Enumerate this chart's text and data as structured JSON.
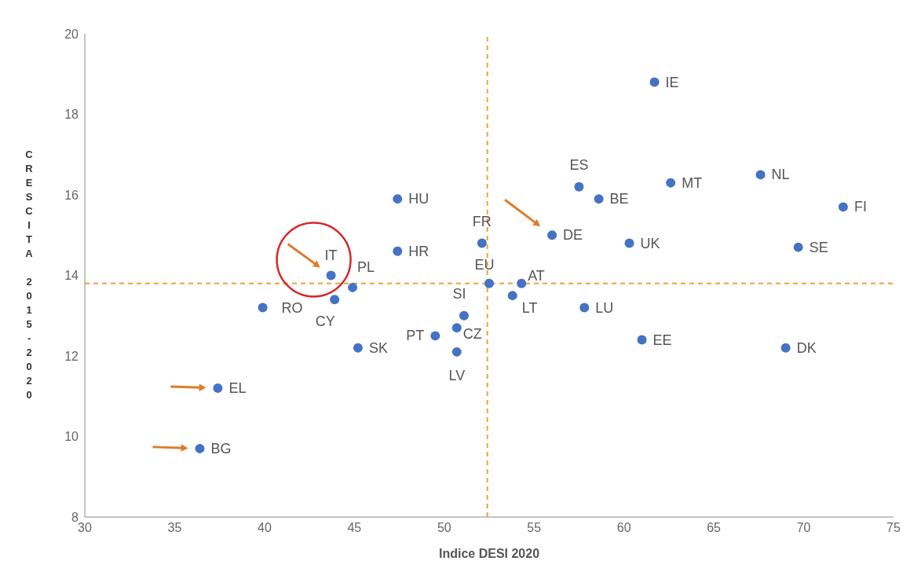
{
  "chart_data": {
    "type": "scatter",
    "xlabel": "Indice DESI 2020",
    "ylabel": "CRESCITA 2015-2020",
    "xlim": [
      30,
      75
    ],
    "xticks": [
      30,
      35,
      40,
      45,
      50,
      55,
      60,
      65,
      70,
      75
    ],
    "ylim": [
      8,
      20
    ],
    "yticks": [
      8,
      10,
      12,
      14,
      16,
      18,
      20
    ],
    "grid": false,
    "legend": false,
    "marker": "circle",
    "ref_lines": [
      {
        "axis": "x",
        "value": 52.4,
        "color": "#f0a040",
        "line_style": "dashed"
      },
      {
        "axis": "y",
        "value": 13.8,
        "color": "#f0a040",
        "line_style": "dashed"
      }
    ],
    "series": [
      {
        "name": "IE",
        "x": [
          61.7
        ],
        "values": [
          18.8
        ],
        "color": "#4472c4"
      },
      {
        "name": "ES",
        "x": [
          57.5
        ],
        "values": [
          16.2
        ],
        "color": "#4472c4"
      },
      {
        "name": "BE",
        "x": [
          58.6
        ],
        "values": [
          15.9
        ],
        "color": "#4472c4"
      },
      {
        "name": "MT",
        "x": [
          62.6
        ],
        "values": [
          16.3
        ],
        "color": "#4472c4"
      },
      {
        "name": "NL",
        "x": [
          67.6
        ],
        "values": [
          16.5
        ],
        "color": "#4472c4"
      },
      {
        "name": "FI",
        "x": [
          72.2
        ],
        "values": [
          15.7
        ],
        "color": "#4472c4"
      },
      {
        "name": "HU",
        "x": [
          47.4
        ],
        "values": [
          15.9
        ],
        "color": "#4472c4"
      },
      {
        "name": "FR",
        "x": [
          52.1
        ],
        "values": [
          14.8
        ],
        "color": "#4472c4"
      },
      {
        "name": "DE",
        "x": [
          56.0
        ],
        "values": [
          15.0
        ],
        "color": "#4472c4"
      },
      {
        "name": "UK",
        "x": [
          60.3
        ],
        "values": [
          14.8
        ],
        "color": "#4472c4"
      },
      {
        "name": "SE",
        "x": [
          69.7
        ],
        "values": [
          14.7
        ],
        "color": "#4472c4"
      },
      {
        "name": "HR",
        "x": [
          47.4
        ],
        "values": [
          14.6
        ],
        "color": "#4472c4"
      },
      {
        "name": "IT",
        "x": [
          43.7
        ],
        "values": [
          14.0
        ],
        "color": "#4472c4"
      },
      {
        "name": "PL",
        "x": [
          44.9
        ],
        "values": [
          13.7
        ],
        "color": "#4472c4"
      },
      {
        "name": "EU",
        "x": [
          52.5
        ],
        "values": [
          13.8
        ],
        "color": "#4472c4"
      },
      {
        "name": "AT",
        "x": [
          54.3
        ],
        "values": [
          13.8
        ],
        "color": "#4472c4"
      },
      {
        "name": "LT",
        "x": [
          53.8
        ],
        "values": [
          13.5
        ],
        "color": "#4472c4"
      },
      {
        "name": "RO",
        "x": [
          39.9
        ],
        "values": [
          13.2
        ],
        "color": "#4472c4"
      },
      {
        "name": "CY",
        "x": [
          43.9
        ],
        "values": [
          13.4
        ],
        "color": "#4472c4"
      },
      {
        "name": "SI",
        "x": [
          51.1
        ],
        "values": [
          13.0
        ],
        "color": "#4472c4"
      },
      {
        "name": "LU",
        "x": [
          57.8
        ],
        "values": [
          13.2
        ],
        "color": "#4472c4"
      },
      {
        "name": "PT",
        "x": [
          49.5
        ],
        "values": [
          12.5
        ],
        "color": "#4472c4"
      },
      {
        "name": "CZ",
        "x": [
          50.7
        ],
        "values": [
          12.7
        ],
        "color": "#4472c4"
      },
      {
        "name": "EE",
        "x": [
          61.0
        ],
        "values": [
          12.4
        ],
        "color": "#4472c4"
      },
      {
        "name": "DK",
        "x": [
          69.0
        ],
        "values": [
          12.2
        ],
        "color": "#4472c4"
      },
      {
        "name": "SK",
        "x": [
          45.2
        ],
        "values": [
          12.2
        ],
        "color": "#4472c4"
      },
      {
        "name": "LV",
        "x": [
          50.7
        ],
        "values": [
          12.1
        ],
        "color": "#4472c4"
      },
      {
        "name": "EL",
        "x": [
          37.4
        ],
        "values": [
          11.2
        ],
        "color": "#4472c4"
      },
      {
        "name": "BG",
        "x": [
          36.4
        ],
        "values": [
          9.7
        ],
        "color": "#4472c4"
      }
    ]
  }
}
